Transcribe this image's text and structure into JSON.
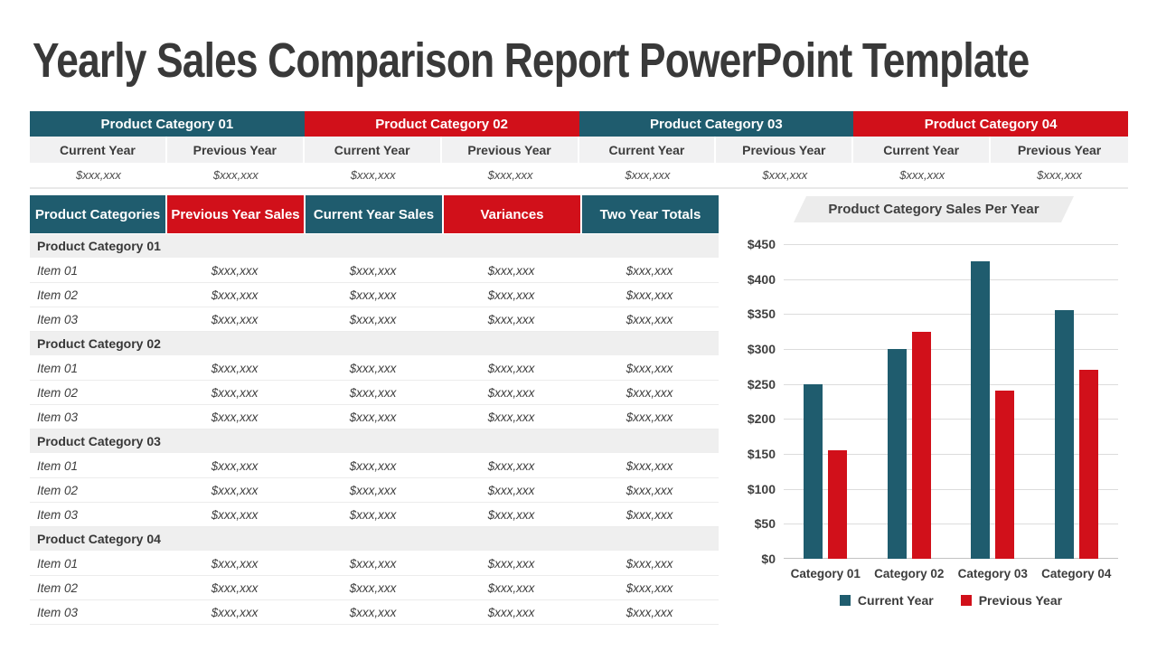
{
  "title": "Yearly Sales Comparison Report PowerPoint Template",
  "colors": {
    "teal": "#1F5C6E",
    "red": "#D1101A",
    "title_text": "#393939",
    "group_row_bg": "#EFEFEF",
    "subheader_bg": "#F1F1F2",
    "banner_bg": "#ECECEC"
  },
  "top_summary": {
    "groups": [
      {
        "label": "Product Category 01",
        "color": "teal",
        "columns": [
          {
            "header": "Current Year",
            "value": "$xxx,xxx"
          },
          {
            "header": "Previous Year",
            "value": "$xxx,xxx"
          }
        ]
      },
      {
        "label": "Product Category 02",
        "color": "red",
        "columns": [
          {
            "header": "Current Year",
            "value": "$xxx,xxx"
          },
          {
            "header": "Previous Year",
            "value": "$xxx,xxx"
          }
        ]
      },
      {
        "label": "Product Category 03",
        "color": "teal",
        "columns": [
          {
            "header": "Current Year",
            "value": "$xxx,xxx"
          },
          {
            "header": "Previous Year",
            "value": "$xxx,xxx"
          }
        ]
      },
      {
        "label": "Product Category 04",
        "color": "red",
        "columns": [
          {
            "header": "Current Year",
            "value": "$xxx,xxx"
          },
          {
            "header": "Previous Year",
            "value": "$xxx,xxx"
          }
        ]
      }
    ]
  },
  "sales_table": {
    "columns": [
      {
        "label": "Product Categories",
        "color": "teal"
      },
      {
        "label": "Previous Year Sales",
        "color": "red"
      },
      {
        "label": "Current Year Sales",
        "color": "teal"
      },
      {
        "label": "Variances",
        "color": "red"
      },
      {
        "label": "Two Year Totals",
        "color": "teal"
      }
    ],
    "groups": [
      {
        "label": "Product Category 01",
        "items": [
          {
            "label": "Item 01",
            "values": [
              "$xxx,xxx",
              "$xxx,xxx",
              "$xxx,xxx",
              "$xxx,xxx"
            ]
          },
          {
            "label": "Item 02",
            "values": [
              "$xxx,xxx",
              "$xxx,xxx",
              "$xxx,xxx",
              "$xxx,xxx"
            ]
          },
          {
            "label": "Item 03",
            "values": [
              "$xxx,xxx",
              "$xxx,xxx",
              "$xxx,xxx",
              "$xxx,xxx"
            ]
          }
        ]
      },
      {
        "label": "Product Category 02",
        "items": [
          {
            "label": "Item 01",
            "values": [
              "$xxx,xxx",
              "$xxx,xxx",
              "$xxx,xxx",
              "$xxx,xxx"
            ]
          },
          {
            "label": "Item 02",
            "values": [
              "$xxx,xxx",
              "$xxx,xxx",
              "$xxx,xxx",
              "$xxx,xxx"
            ]
          },
          {
            "label": "Item 03",
            "values": [
              "$xxx,xxx",
              "$xxx,xxx",
              "$xxx,xxx",
              "$xxx,xxx"
            ]
          }
        ]
      },
      {
        "label": "Product Category 03",
        "items": [
          {
            "label": "Item 01",
            "values": [
              "$xxx,xxx",
              "$xxx,xxx",
              "$xxx,xxx",
              "$xxx,xxx"
            ]
          },
          {
            "label": "Item 02",
            "values": [
              "$xxx,xxx",
              "$xxx,xxx",
              "$xxx,xxx",
              "$xxx,xxx"
            ]
          },
          {
            "label": "Item 03",
            "values": [
              "$xxx,xxx",
              "$xxx,xxx",
              "$xxx,xxx",
              "$xxx,xxx"
            ]
          }
        ]
      },
      {
        "label": "Product Category 04",
        "items": [
          {
            "label": "Item 01",
            "values": [
              "$xxx,xxx",
              "$xxx,xxx",
              "$xxx,xxx",
              "$xxx,xxx"
            ]
          },
          {
            "label": "Item 02",
            "values": [
              "$xxx,xxx",
              "$xxx,xxx",
              "$xxx,xxx",
              "$xxx,xxx"
            ]
          },
          {
            "label": "Item 03",
            "values": [
              "$xxx,xxx",
              "$xxx,xxx",
              "$xxx,xxx",
              "$xxx,xxx"
            ]
          }
        ]
      }
    ]
  },
  "chart_data": {
    "type": "bar",
    "title": "Product Category Sales Per Year",
    "categories": [
      "Category 01",
      "Category 02",
      "Category 03",
      "Category 04"
    ],
    "series": [
      {
        "name": "Current Year",
        "color": "#1F5C6E",
        "values": [
          250,
          300,
          425,
          355
        ]
      },
      {
        "name": "Previous Year",
        "color": "#D1101A",
        "values": [
          155,
          325,
          240,
          270
        ]
      }
    ],
    "ylim": [
      0,
      450
    ],
    "y_tick_step": 50,
    "y_tick_labels": [
      "$450",
      "$400",
      "$350",
      "$300",
      "$250",
      "$200",
      "$150",
      "$100",
      "$50",
      "$0"
    ],
    "grid": true,
    "legend_position": "bottom"
  }
}
